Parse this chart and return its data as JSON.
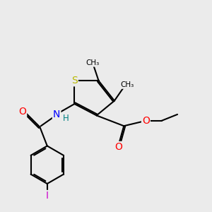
{
  "bg_color": "#ebebeb",
  "atom_colors": {
    "S": "#b8b800",
    "O": "#ff0000",
    "N": "#0000ff",
    "I": "#cc00cc",
    "C": "#000000",
    "H": "#008080"
  },
  "bond_color": "#000000",
  "line_width": 1.5,
  "fig_size": [
    3.0,
    3.0
  ],
  "dpi": 100
}
